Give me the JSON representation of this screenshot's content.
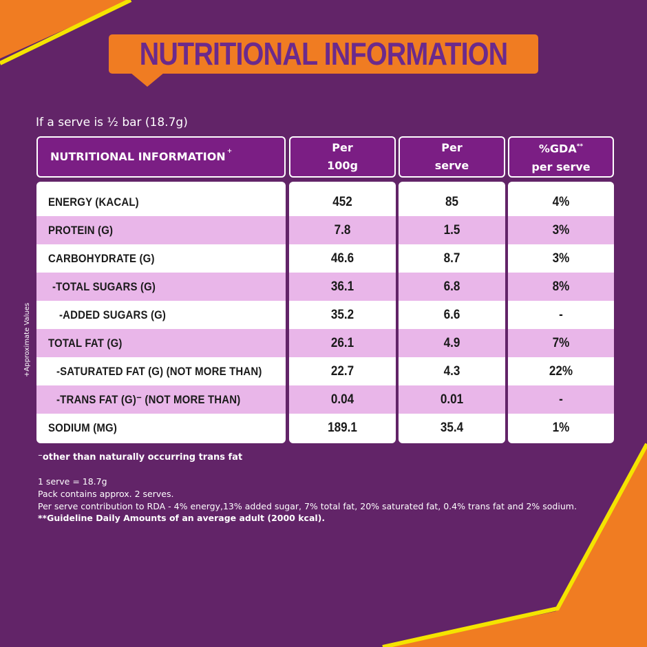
{
  "colors": {
    "background": "#622468",
    "accent_orange": "#f07c22",
    "accent_yellow": "#f4e400",
    "header_purple": "#7b1e84",
    "title_purple": "#6b2a8c",
    "stripe_pink": "#e9b6e9"
  },
  "banner": {
    "title": "NUTRITIONAL INFORMATION"
  },
  "serve_note": "If a serve is ½ bar (18.7g)",
  "table": {
    "headers": {
      "nutrient": "NUTRITIONAL INFORMATION",
      "nutrient_mark": "+",
      "per_100g_line1": "Per",
      "per_100g_line2": "100g",
      "per_serve_line1": "Per",
      "per_serve_line2": "serve",
      "gda_line1": "%GDA",
      "gda_mark": "**",
      "gda_line2": "per serve"
    },
    "rows": [
      {
        "name": "ENERGY (KACAL)",
        "per_100g": "452",
        "per_serve": "85",
        "gda": "4%"
      },
      {
        "name": "PROTEIN (G)",
        "per_100g": "7.8",
        "per_serve": "1.5",
        "gda": "3%"
      },
      {
        "name": "CARBOHYDRATE (G)",
        "per_100g": "46.6",
        "per_serve": "8.7",
        "gda": "3%"
      },
      {
        "name": "-TOTAL SUGARS (G)",
        "per_100g": "36.1",
        "per_serve": "6.8",
        "gda": "8%"
      },
      {
        "name": "-ADDED SUGARS (G)",
        "per_100g": "35.2",
        "per_serve": "6.6",
        "gda": "-"
      },
      {
        "name": "TOTAL FAT (G)",
        "per_100g": "26.1",
        "per_serve": "4.9",
        "gda": "7%"
      },
      {
        "name": "-SATURATED FAT (G) (NOT MORE THAN)",
        "per_100g": "22.7",
        "per_serve": "4.3",
        "gda": "22%"
      },
      {
        "name": "-TRANS FAT (G)⁻ (NOT MORE THAN)",
        "per_100g": "0.04",
        "per_serve": "0.01",
        "gda": "-"
      },
      {
        "name": "SODIUM (MG)",
        "per_100g": "189.1",
        "per_serve": "35.4",
        "gda": "1%"
      }
    ]
  },
  "side_label": "+Approximate Values",
  "footnotes": {
    "trans_fat": "⁻other than naturally occurring trans fat",
    "serve_size": "1 serve = 18.7g",
    "pack": "Pack contains approx. 2 serves.",
    "rda": "Per serve contribution to RDA - 4% energy,13% added sugar, 7% total fat, 20% saturated fat, 0.4% trans fat and 2% sodium.",
    "gda": "**Guideline Daily Amounts of an average adult (2000 kcal)."
  }
}
